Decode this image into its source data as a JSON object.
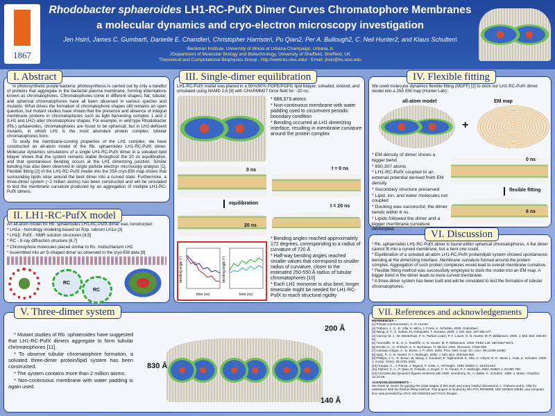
{
  "header": {
    "title_species": "Rhodobacter sphaeroides",
    "title_rest": "LH1-RC-PufX Dimer Curves Chromatophore Membranes",
    "subtitle": "a molecular dynamics and cryo-electron microscopy investigation",
    "authors": "Jen Hsin\\, James C. Gumbart\\, Danielle E. Chandler\\, Christopher Harrison\\, Pu Qian2, Per A. Bullough2, C. Neil Hunter2, and Klaus Schulten\\",
    "affiliations": [
      "\\Beckman Institute, University of Illinois at Urbana-Champaign, Urbana, IL",
      "2Department of Molecular Biology and Biotechnology, University of Sheffield, Sheffield, UK",
      "Theoretical and Computational Biophysics Group - http://www.ks.uiuc.edu/ - Email: jhsin@ks.uiuc.edu"
    ],
    "logo_year": "1867"
  },
  "abstract": {
    "heading": "I. Abstract",
    "paragraphs": [
      "In photosynthetic purple bacteria, photosynthesis is carried out by only a handful of proteins that aggregate in the bacterial plasma membrane, forming indentations known as chromatophores. Chromatophores come in different shapes; flat, tubular, and spherical chromatophores have all been observed in various species and mutants. What drives the formation of chromatophore shapes still remains an open question, but mutant studies have shown that the presence and absence of integral membrane proteins in chromatophores such as light harvesting complex 1 and 2 (LH1 and LH2) alter chromatophore shapes. For example, in wild type Rhodobacter (Rb.) sphaeroides, chromatophores are found to be spherical; but in LH2-deficient mutants, in which LH1 is the most abundant protein complex, tubular chromatophores form.",
      "To study the membrane-curving properties of the LH1 complex, we have constructed an all-atom model of the Rb. sphaeroides LH1-RC-PufX dimer. Molecular dynamics simulations of a single LH1-RC-PufX dimer in a solvated lipid bilayer shows that the system remains stable throughout the 20 ns equilibration, and that spontaneous bending occurs at the LH1 dimerizing junction. Similar bending has also been observed in single particle electron microscopy analysis [1]. Flexible fitting [2] of the LH1-RC-PufX model into the 25Å cryo-EM map shows that surrounding lipids relax around the bent dimer into a curved state. Furthermore, a three-dimer system (~2 million atoms) has been constructed and will be simulated to test the membrane curvature produced by an aggregation of multiple LH1-RC-PufX dimers."
    ]
  },
  "model": {
    "heading": "II. LH1-RC-PufX model",
    "intro": "An all-atom model for Rb. sphaeroides LH1-RC-PufX dimer was constructed:",
    "bullets": [
      "* LH1α - homology modeling based on Rsp. rubrum LH1α [3]",
      "* LH1β, PufX - NMR solution structures [4,5]",
      "* RC - X-ray diffraction structure [6,7]",
      "* Chromophore molecules placed similar to Rs. molischianum LH2",
      "* Assembled into an S-shaped dimer as observed in the cryo-EM data [8]"
    ],
    "figure_label": "RC"
  },
  "equilibration": {
    "heading": "III. Single-dimer equilibration",
    "intro": "LH1-RC-PufX model was placed in a 50%/50% POPE/POPG lipid bilayer, solvated, ionized, and simulated using NAMD 2.6 [9] with CHARMM27 force field for ~20 ns:",
    "bullets": [
      "* 688,373 atoms",
      "* Non-continuous membrane with water padding used to circumvent periodic boundary condition",
      "* Bending occurred at LH1 dimerizing interface, resulting in membrane curvature around the protein complex"
    ],
    "labels": {
      "start": "0 ns",
      "arrow": "equilibration",
      "end": "20 ns",
      "t_start": "t = 0 ns",
      "t_end": "t = 20 ns"
    },
    "results": [
      "* Bending angles reached approximately 172 degrees, corresponding to a radius of curvature of 720 Å",
      "* Half-way bending angles reached smaller values that correspond to smaller radius of curvature, closer to the estimated 250-550 Å radius of tubular chromatophores [10]",
      "* Each LH1 monomer is also bent; longer timescale might be needed for LH1-RC-PufX to reach structural rigidity"
    ],
    "plot_ylabel": "bending angle (°)",
    "plot_xlabel": "time (ns)"
  },
  "fitting": {
    "heading": "IV. Flexible fitting",
    "intro": "We used molecular dynamics flexible fitting (MDFF) [2] to dock our LH1-RC-PufX dimer model into a 25Å EM map (Hunter Lab):",
    "model_label": "all-atom model",
    "map_label": "EM map",
    "plus": "+",
    "bullets": [
      "* EM density of dimer shows a bigger bend",
      "* 890,307 atoms",
      "* LH1-RC-PufX coupled to an external potential derived from EM density",
      "* Secondary structure preserved",
      "* Lipid, ion, and water molecules not coupled",
      "* Docking was successful; the dimer bends within 6 ns",
      "* Lipids followed the dimer and a bigger membrane curvature developed."
    ],
    "labels": {
      "start": "0 ns",
      "arrow": "flexible fitting",
      "end": "6 ns"
    }
  },
  "discussion": {
    "heading": "VI. Discussion",
    "bullets": [
      "* Rb. sphaeroides LH1-RC-PufX dimer is found within spherical chromatophores. A flat dimer cannot fit into a curved membrane, but a bent one could.",
      "* Equilibration of a solvated all-atom LH1-RC-PufX protein/lipid system showed spontaneous bending at the dimerizing interface. Membrane curvature formed around the protein complex. Aggregation of such protein complexes would lead to overall membrane curvature.",
      "* Flexible fitting method was successfully employed to dock the model into an EM map. A bigger bend in the dimer leads to more curved membrane.",
      "* A three-dimer system has been built and will be simulated to test the formation of tubular chromatophores."
    ]
  },
  "three_dimer": {
    "heading": "V. Three-dimer system",
    "bullets": [
      "* Mutant studies of Rb. sphaeroides have suggested that LH1-RC-PufX dimers aggregate to form tubular chromatophores [11].",
      "* To observe tubular chromatophore formation, a solvated three-dimer protein/lipid system has been constructed.",
      "* The system contains more than 2 million atoms.",
      "* Non-continuous membrane with water padding is again used."
    ],
    "dimensions": {
      "top": "200 Å",
      "left": "830 Å",
      "bottom": "140 Å"
    }
  },
  "references": {
    "heading": "VII. References and acknowledgements",
    "refs_title": "REFERENCES –",
    "refs": [
      "[1] Private communication, C. N. Hunter.",
      "[2] Trabuco, L. G., E. Villa, K. Mitra, J. Frank, K. Schulten. 2008. Submitted.",
      "[3] Wang, Z. Y., K. Gokan, M. Kobayashi, T. Nozawa. 2005. J. Mol. Biol. 347:465-477.",
      "[4] Conroy, M. J., W. Westerhuis, P. S. Parkes-Loach, P. A. Loach, C. N. Hunter, M. P. Williamson. 2000. J. Mol. Biol. 298:83-94.",
      "[5] Tunnicliffe, R. B., E. C. Ratcliffe, C. N. Hunter, M. P. Williamson. 2006. FEBS Lett. 580:6967-6971.",
      "[6] Ermler, U., G. Fritzsch, S. K. Buchanan, H. Michel. 1994. Structure. 2:925-936.",
      "[7] Camara-Artigas, A., D. Brune, J. P. Allen. 2002. Proc. Natl. Acad. Sci. USA. 99:11055-11060.",
      "[8] Qian, P., C. N. Hunter, P. A. Bullough. 2005. J. Mol. Biol. 349:948-960.",
      "[9] Phillips, J. C., R. Braun, W. Wang, J. Gumbart, E. Tajkhorshid, E. Villa, C. Chipot, R. D. Skeel, L. Kale, K. Schulten. 2005. J. Comp. Chem. 26:1781-1802.",
      "[10] Jungas, C., J. Ranck, J. Rigaud, P. Joliot, A. Vermeglio. 1999. EMBO J. 18:534-542.",
      "[11] Siebert, C. A., P. Qian, D. Fotiadis, A. Engel, C. N. Hunter, P. A. Bullough. 2004. EMBO J. 23:690-700.",
      "[12] All molecular dynamics figures rendered with VMD: Humphrey, W., A. Dalke, K. Schulten. 1996. J. Molec. Graphics 14:33-38."
    ],
    "ack_title": "ACKNOWLEDGEMENTS –",
    "ack": "We thank M. Sener for guiding the initial stages of this work and many helpful discussions; L. Trabuco and E. Villa for assistance with the flexible fitting method. This project is funded by NIH P41-RR05969, NSF MCB02-34938, and computer time was provided by LRAC MCA93S028 and TACC Ranger."
  }
}
